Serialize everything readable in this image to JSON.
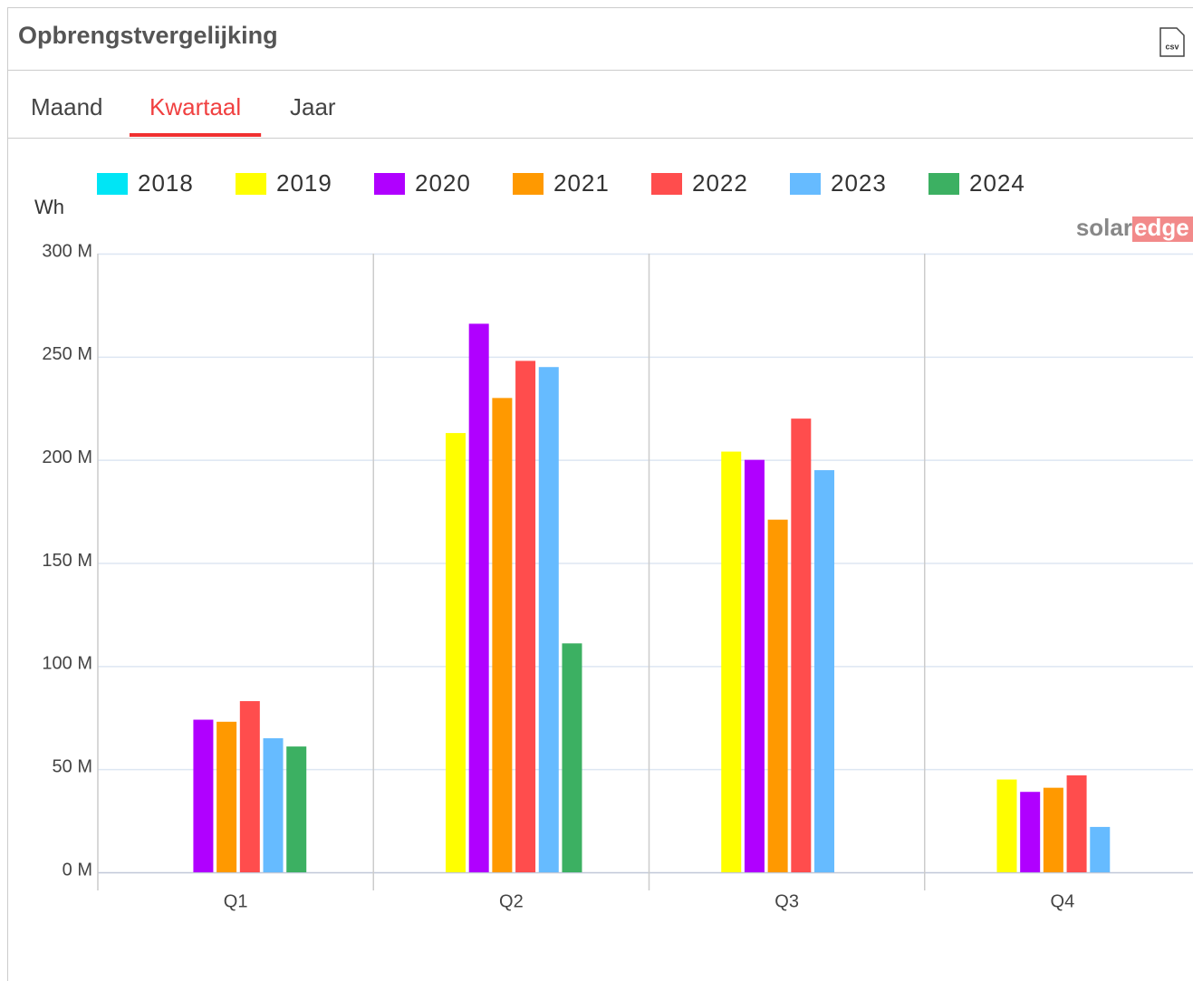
{
  "header": {
    "title": "Opbrengstvergelijking",
    "csv_icon": "csv"
  },
  "tabs": [
    {
      "label": "Maand",
      "active": false
    },
    {
      "label": "Kwartaal",
      "active": true
    },
    {
      "label": "Jaar",
      "active": false
    }
  ],
  "brand": {
    "left": "solar",
    "right": "edge"
  },
  "chart_data": {
    "type": "bar",
    "y_label": "Wh",
    "categories": [
      "Q1",
      "Q2",
      "Q3",
      "Q4"
    ],
    "series": [
      {
        "name": "2018",
        "color": "#00e5f5",
        "values": [
          null,
          null,
          null,
          null
        ]
      },
      {
        "name": "2019",
        "color": "#ffff00",
        "values": [
          null,
          213000000,
          204000000,
          45000000
        ]
      },
      {
        "name": "2020",
        "color": "#b000ff",
        "values": [
          74000000,
          266000000,
          200000000,
          39000000
        ]
      },
      {
        "name": "2021",
        "color": "#ff9900",
        "values": [
          73000000,
          230000000,
          171000000,
          41000000
        ]
      },
      {
        "name": "2022",
        "color": "#ff4d4d",
        "values": [
          83000000,
          248000000,
          220000000,
          47000000
        ]
      },
      {
        "name": "2023",
        "color": "#66bbff",
        "values": [
          65000000,
          245000000,
          195000000,
          22000000
        ]
      },
      {
        "name": "2024",
        "color": "#3cb062",
        "values": [
          61000000,
          111000000,
          null,
          null
        ]
      }
    ],
    "ylim": [
      0,
      300000000
    ],
    "yticks": [
      {
        "value": 0,
        "label": "0 M"
      },
      {
        "value": 50000000,
        "label": "50 M"
      },
      {
        "value": 100000000,
        "label": "100 M"
      },
      {
        "value": 150000000,
        "label": "150 M"
      },
      {
        "value": 200000000,
        "label": "200 M"
      },
      {
        "value": 250000000,
        "label": "250 M"
      },
      {
        "value": 300000000,
        "label": "300 M"
      }
    ],
    "grid": true,
    "legend": "top"
  }
}
